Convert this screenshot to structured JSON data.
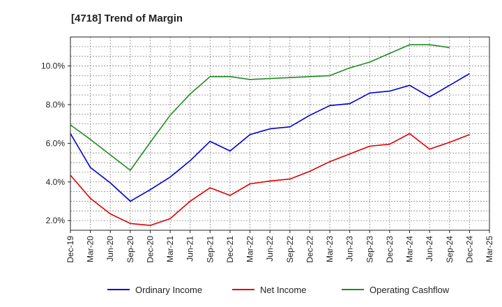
{
  "chart_data": {
    "type": "line",
    "title": "[4718]  Trend of Margin",
    "xlabel": "",
    "ylabel": "",
    "x": [
      "Dec-19",
      "Mar-20",
      "Jun-20",
      "Sep-20",
      "Dec-20",
      "Mar-21",
      "Jun-21",
      "Sep-21",
      "Dec-21",
      "Mar-22",
      "Jun-22",
      "Sep-22",
      "Dec-22",
      "Mar-23",
      "Jun-23",
      "Sep-23",
      "Dec-23",
      "Mar-24",
      "Jun-24",
      "Sep-24",
      "Dec-24",
      "Mar-25"
    ],
    "ylim": [
      1.5,
      11.5
    ],
    "yticks": [
      2.0,
      4.0,
      6.0,
      8.0,
      10.0
    ],
    "ytick_labels": [
      "2.0%",
      "4.0%",
      "6.0%",
      "8.0%",
      "10.0%"
    ],
    "grid": true,
    "legend_position": "bottom",
    "series": [
      {
        "name": "Ordinary Income",
        "color": "#0000cc",
        "values": [
          6.5,
          4.75,
          3.95,
          3.0,
          3.6,
          4.25,
          5.1,
          6.1,
          5.6,
          6.45,
          6.75,
          6.85,
          7.45,
          7.95,
          8.05,
          8.6,
          8.7,
          9.0,
          8.4,
          9.0,
          9.6,
          null
        ]
      },
      {
        "name": "Net Income",
        "color": "#dd0000",
        "values": [
          4.35,
          3.15,
          2.35,
          1.85,
          1.75,
          2.1,
          3.0,
          3.7,
          3.3,
          3.9,
          4.05,
          4.15,
          4.55,
          5.05,
          5.45,
          5.85,
          5.95,
          6.5,
          5.7,
          6.05,
          6.45,
          null
        ]
      },
      {
        "name": "Operating Cashflow",
        "color": "#228b22",
        "values": [
          6.95,
          6.2,
          5.4,
          4.6,
          6.05,
          7.45,
          8.55,
          9.45,
          9.45,
          9.3,
          9.35,
          9.4,
          9.45,
          9.5,
          9.9,
          10.2,
          10.65,
          11.1,
          11.1,
          10.95,
          null,
          null
        ]
      }
    ]
  }
}
